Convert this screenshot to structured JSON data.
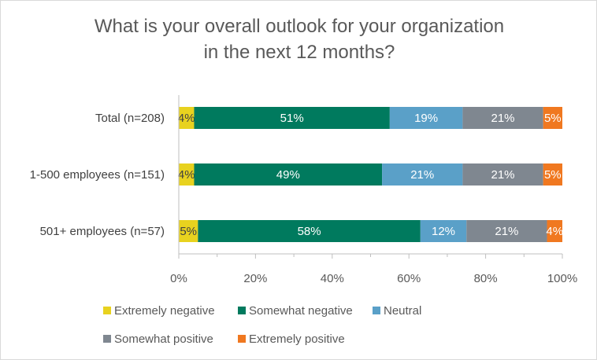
{
  "chart_data": {
    "type": "bar",
    "orientation": "horizontal",
    "stacked": true,
    "title": "What is your overall outlook for your organization\nin the next 12 months?",
    "categories": [
      "Total (n=208)",
      "1-500 employees (n=151)",
      "501+ employees (n=57)"
    ],
    "series": [
      {
        "name": "Extremely negative",
        "color": "#e8d21f",
        "label_color": "#404040",
        "values": [
          4,
          4,
          5
        ],
        "labels": [
          "4%",
          "4%",
          "5%"
        ]
      },
      {
        "name": "Somewhat negative",
        "color": "#007a5e",
        "label_color": "#ffffff",
        "values": [
          51,
          49,
          58
        ],
        "labels": [
          "51%",
          "49%",
          "58%"
        ]
      },
      {
        "name": "Neutral",
        "color": "#5aa0c8",
        "label_color": "#ffffff",
        "values": [
          19,
          21,
          12
        ],
        "labels": [
          "19%",
          "21%",
          "12%"
        ]
      },
      {
        "name": "Somewhat positive",
        "color": "#7f8790",
        "label_color": "#ffffff",
        "values": [
          21,
          21,
          21
        ],
        "labels": [
          "21%",
          "21%",
          "21%"
        ]
      },
      {
        "name": "Extremely positive",
        "color": "#f07820",
        "label_color": "#ffffff",
        "values": [
          5,
          5,
          4
        ],
        "labels": [
          "5%",
          "5%",
          "4%"
        ]
      }
    ],
    "xlim": [
      0,
      100
    ],
    "xticks": [
      "0%",
      "20%",
      "40%",
      "60%",
      "80%",
      "100%"
    ],
    "xlabel": "",
    "ylabel": "",
    "grid": false,
    "legend_position": "bottom"
  }
}
